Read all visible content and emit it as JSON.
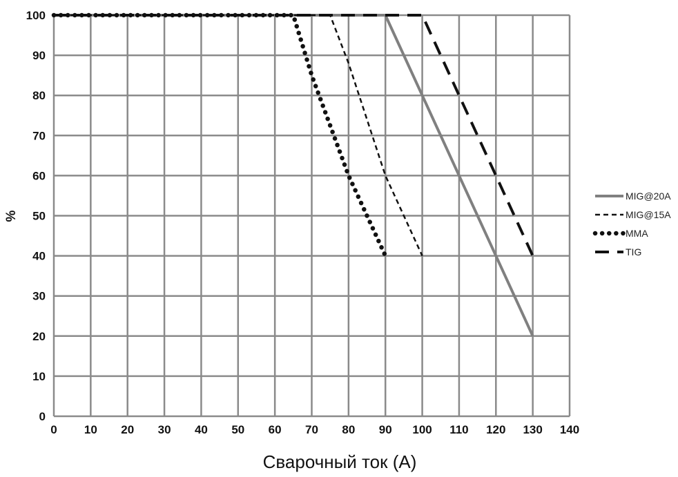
{
  "chart_data": {
    "type": "line",
    "title": "",
    "xlabel": "Сварочный ток (A)",
    "ylabel": "%",
    "xlim": [
      0,
      140
    ],
    "ylim": [
      0,
      100
    ],
    "x_ticks": [
      "0",
      "10",
      "20",
      "30",
      "40",
      "50",
      "60",
      "70",
      "80",
      "90",
      "100",
      "110",
      "120",
      "130",
      "140"
    ],
    "y_ticks": [
      "0",
      "10",
      "20",
      "30",
      "40",
      "50",
      "60",
      "70",
      "80",
      "90",
      "100"
    ],
    "grid": true,
    "legend_position": "right",
    "series": [
      {
        "name": "MIG@20A",
        "style": "solid",
        "color": "#808080",
        "x": [
          0,
          90,
          100,
          110,
          120,
          130
        ],
        "y": [
          100,
          100,
          80,
          60,
          40,
          20
        ]
      },
      {
        "name": "MIG@15A",
        "style": "dashed",
        "color": "#111111",
        "x": [
          0,
          75,
          80,
          90,
          100
        ],
        "y": [
          100,
          100,
          88,
          60,
          40
        ]
      },
      {
        "name": "MMA",
        "style": "dotted",
        "color": "#111111",
        "x": [
          0,
          65,
          70,
          80,
          90
        ],
        "y": [
          100,
          100,
          85,
          60,
          40
        ]
      },
      {
        "name": "TIG",
        "style": "longdash",
        "color": "#111111",
        "x": [
          0,
          100,
          110,
          120,
          130
        ],
        "y": [
          100,
          100,
          80,
          60,
          40
        ]
      }
    ]
  }
}
